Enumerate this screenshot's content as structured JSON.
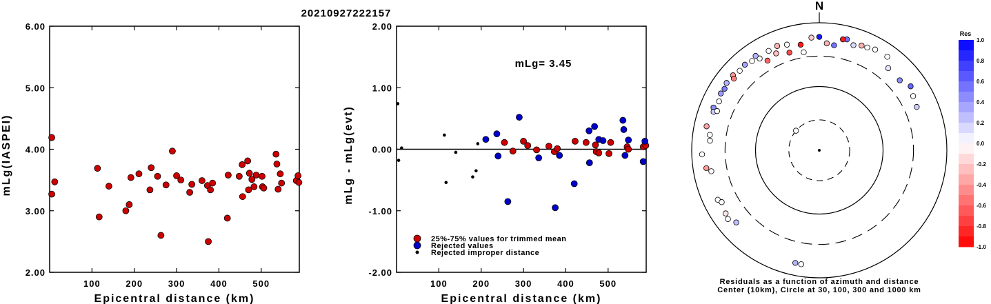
{
  "title": "20210927222157",
  "colors": {
    "trimmed": "#cc0000",
    "rejected": "#0000cc",
    "improper": "#000000",
    "residual_pos": "#0000ff",
    "residual_neg": "#ff0000"
  },
  "chart_data": [
    {
      "type": "scatter",
      "xlabel": "Epicentral distance (km)",
      "ylabel": "mLg(IASPEI)",
      "xlim": [
        0,
        590
      ],
      "ylim": [
        2.0,
        6.0
      ],
      "xticks": [
        "100",
        "200",
        "300",
        "400",
        "500"
      ],
      "xtick_values": [
        100,
        200,
        300,
        400,
        500
      ],
      "yticks": [
        "2.00",
        "3.00",
        "4.00",
        "5.00",
        "6.00"
      ],
      "ytick_values": [
        2,
        3,
        4,
        5,
        6
      ],
      "points": [
        [
          5,
          4.19
        ],
        [
          5,
          3.27
        ],
        [
          12,
          3.47
        ],
        [
          113,
          3.69
        ],
        [
          117,
          2.9
        ],
        [
          140,
          3.4
        ],
        [
          180,
          3.0
        ],
        [
          188,
          3.1
        ],
        [
          192,
          3.54
        ],
        [
          211,
          3.6
        ],
        [
          237,
          3.34
        ],
        [
          240,
          3.7
        ],
        [
          255,
          3.56
        ],
        [
          263,
          2.6
        ],
        [
          275,
          3.42
        ],
        [
          290,
          3.97
        ],
        [
          300,
          3.57
        ],
        [
          310,
          3.5
        ],
        [
          331,
          3.3
        ],
        [
          336,
          3.43
        ],
        [
          360,
          3.49
        ],
        [
          373,
          3.41
        ],
        [
          375,
          2.5
        ],
        [
          380,
          3.34
        ],
        [
          385,
          3.45
        ],
        [
          420,
          2.88
        ],
        [
          422,
          3.58
        ],
        [
          448,
          3.56
        ],
        [
          455,
          3.75
        ],
        [
          456,
          3.23
        ],
        [
          468,
          3.81
        ],
        [
          470,
          3.34
        ],
        [
          472,
          3.61
        ],
        [
          478,
          3.51
        ],
        [
          483,
          3.39
        ],
        [
          488,
          3.58
        ],
        [
          502,
          3.56
        ],
        [
          503,
          3.39
        ],
        [
          506,
          3.37
        ],
        [
          535,
          3.92
        ],
        [
          537,
          3.76
        ],
        [
          540,
          3.35
        ],
        [
          545,
          3.6
        ],
        [
          548,
          3.45
        ],
        [
          583,
          3.49
        ],
        [
          587,
          3.57
        ],
        [
          589,
          3.46
        ]
      ]
    },
    {
      "type": "scatter",
      "xlabel": "Epicentral distance (km)",
      "ylabel": "mLg - mLg(evt)",
      "annotation": "mLg= 3.45",
      "xlim": [
        0,
        590
      ],
      "ylim": [
        -2.0,
        2.0
      ],
      "xticks": [
        "100",
        "200",
        "300",
        "400",
        "500"
      ],
      "xtick_values": [
        100,
        200,
        300,
        400,
        500
      ],
      "yticks": [
        "-2.00",
        "-1.00",
        "0.00",
        "1.00",
        "2.00"
      ],
      "ytick_values": [
        -2,
        -1,
        0,
        1,
        2
      ],
      "legend": [
        "25%-75% values for trimmed mean",
        "Rejected values",
        "Rejected improper distance"
      ],
      "series": [
        {
          "name": "25%-75% values for trimmed mean",
          "points": [
            [
              255,
              0.11
            ],
            [
              275,
              -0.03
            ],
            [
              300,
              0.13
            ],
            [
              310,
              0.06
            ],
            [
              331,
              -0.01
            ],
            [
              360,
              0.05
            ],
            [
              373,
              -0.04
            ],
            [
              380,
              0.01
            ],
            [
              422,
              0.13
            ],
            [
              448,
              0.11
            ],
            [
              470,
              0.07
            ],
            [
              472,
              -0.04
            ],
            [
              478,
              -0.06
            ],
            [
              502,
              -0.07
            ],
            [
              506,
              0.11
            ],
            [
              545,
              0.04
            ],
            [
              548,
              0.0
            ],
            [
              583,
              0.04
            ],
            [
              589,
              0.06
            ]
          ]
        },
        {
          "name": "Rejected values",
          "points": [
            [
              211,
              0.16
            ],
            [
              237,
              0.25
            ],
            [
              240,
              -0.11
            ],
            [
              263,
              -0.85
            ],
            [
              290,
              0.52
            ],
            [
              336,
              -0.14
            ],
            [
              375,
              -0.95
            ],
            [
              385,
              -0.1
            ],
            [
              420,
              -0.56
            ],
            [
              455,
              0.3
            ],
            [
              456,
              -0.22
            ],
            [
              468,
              0.37
            ],
            [
              478,
              0.16
            ],
            [
              488,
              0.14
            ],
            [
              535,
              0.47
            ],
            [
              537,
              0.32
            ],
            [
              540,
              -0.1
            ],
            [
              548,
              0.15
            ],
            [
              583,
              -0.2
            ],
            [
              587,
              0.13
            ]
          ]
        },
        {
          "name": "Rejected improper distance",
          "points": [
            [
              3,
              0.74
            ],
            [
              5,
              -0.18
            ],
            [
              12,
              0.02
            ],
            [
              113,
              0.23
            ],
            [
              117,
              -0.54
            ],
            [
              140,
              -0.05
            ],
            [
              180,
              -0.45
            ],
            [
              188,
              -0.35
            ],
            [
              192,
              0.09
            ]
          ]
        }
      ]
    },
    {
      "type": "scatter",
      "subtype": "polar-residuals",
      "north_label": "N",
      "caption_line1": "Residuals as a function of azimuth and distance",
      "caption_line2": "Center (10km), Circle at 30, 100, 300 and 1000 km",
      "colorbar_title": "Res",
      "colorbar_ticks": [
        "1.0",
        "0.8",
        "0.6",
        "0.4",
        "0.2",
        "0.0",
        "-0.2",
        "-0.4",
        "-0.6",
        "-0.8",
        "-1.0"
      ],
      "colorbar_values": [
        1.0,
        0.8,
        0.6,
        0.4,
        0.2,
        0.0,
        -0.2,
        -0.4,
        -0.6,
        -0.8,
        -1.0
      ],
      "rings_km": [
        30,
        100,
        300,
        1000
      ],
      "points": [
        {
          "az": 351,
          "dist": 360,
          "res": 0.0
        },
        {
          "az": 14,
          "dist": 620,
          "res": 0.55
        },
        {
          "az": 356,
          "dist": 590,
          "res": -0.2
        },
        {
          "az": 0,
          "dist": 600,
          "res": 0.9
        },
        {
          "az": 8,
          "dist": 460,
          "res": 0.55
        },
        {
          "az": 18,
          "dist": 540,
          "res": 0.15
        },
        {
          "az": 25,
          "dist": 600,
          "res": 0.0
        },
        {
          "az": 29,
          "dist": 640,
          "res": 0.0
        },
        {
          "az": 36,
          "dist": 650,
          "res": 0.0
        },
        {
          "az": 40,
          "dist": 480,
          "res": 0.1
        },
        {
          "az": 49,
          "dist": 470,
          "res": 0.45
        },
        {
          "az": 55,
          "dist": 560,
          "res": 0.6
        },
        {
          "az": 60,
          "dist": 500,
          "res": 0.0
        },
        {
          "az": 66,
          "dist": 470,
          "res": 0.2
        },
        {
          "az": 22,
          "dist": 590,
          "res": -0.3
        },
        {
          "az": 12,
          "dist": 600,
          "res": -0.9
        },
        {
          "az": 4,
          "dist": 480,
          "res": -0.3
        },
        {
          "az": 350,
          "dist": 480,
          "res": -0.9
        },
        {
          "az": 343,
          "dist": 400,
          "res": -0.7
        },
        {
          "az": 336,
          "dist": 460,
          "res": -0.25
        },
        {
          "az": 330,
          "dist": 420,
          "res": -0.6
        },
        {
          "az": 338,
          "dist": 580,
          "res": -0.3
        },
        {
          "az": 333,
          "dist": 560,
          "res": 0.0
        },
        {
          "az": 327,
          "dist": 520,
          "res": 0.0
        },
        {
          "az": 343,
          "dist": 540,
          "res": 0.0
        },
        {
          "az": 326,
          "dist": 610,
          "res": 0.3
        },
        {
          "az": 323,
          "dist": 565,
          "res": 0.0
        },
        {
          "az": 319,
          "dist": 600,
          "res": 0.35
        },
        {
          "az": 315,
          "dist": 580,
          "res": 0.0
        },
        {
          "az": 311,
          "dist": 620,
          "res": -0.4
        },
        {
          "az": 306,
          "dist": 625,
          "res": 0.3
        },
        {
          "az": 310,
          "dist": 560,
          "res": -0.5
        },
        {
          "az": 303,
          "dist": 590,
          "res": 0.5
        },
        {
          "az": 300,
          "dist": 605,
          "res": 0.4
        },
        {
          "az": 292,
          "dist": 615,
          "res": 0.45
        },
        {
          "az": 290,
          "dist": 580,
          "res": 0.2
        },
        {
          "az": 282,
          "dist": 640,
          "res": -0.35
        },
        {
          "az": 291,
          "dist": 520,
          "res": 0.0
        },
        {
          "az": 296,
          "dist": 560,
          "res": 0.0
        },
        {
          "az": 278,
          "dist": 540,
          "res": 0.0
        },
        {
          "az": 275,
          "dist": 525,
          "res": 0.0
        },
        {
          "az": 268,
          "dist": 690,
          "res": 0.0
        },
        {
          "az": 261,
          "dist": 620,
          "res": -0.4
        },
        {
          "az": 259,
          "dist": 530,
          "res": 0.0
        },
        {
          "az": 244,
          "dist": 590,
          "res": 0.0
        },
        {
          "az": 242,
          "dist": 540,
          "res": 0.0
        },
        {
          "az": 236,
          "dist": 590,
          "res": -0.1
        },
        {
          "az": 233,
          "dist": 620,
          "res": 0.0
        },
        {
          "az": 229,
          "dist": 530,
          "res": 0.25
        },
        {
          "az": 192,
          "dist": 640,
          "res": 0.3
        },
        {
          "az": 189,
          "dist": 645,
          "res": 0.0
        },
        {
          "az": 310,
          "dist": 30,
          "res": 0.0
        }
      ]
    }
  ]
}
